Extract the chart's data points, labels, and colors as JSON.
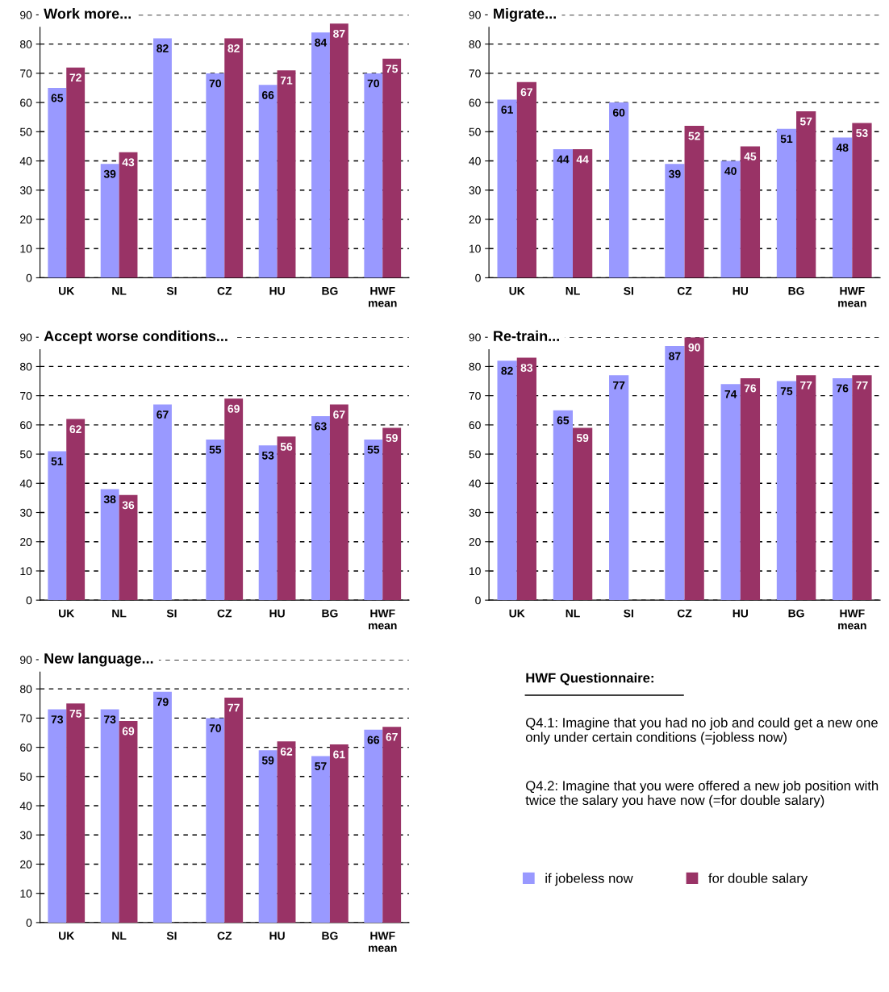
{
  "chart_data": [
    {
      "type": "bar",
      "title": "Work more...",
      "categories": [
        "UK",
        "NL",
        "SI",
        "CZ",
        "HU",
        "BG",
        "HWF\nmean"
      ],
      "ylim": [
        0,
        90
      ],
      "yticks": [
        0,
        10,
        20,
        30,
        40,
        50,
        60,
        70,
        80,
        90
      ],
      "grid": "y",
      "data_labels": true,
      "series": [
        {
          "color": "#9999ff",
          "values": [
            65,
            39,
            82,
            70,
            66,
            84,
            70
          ]
        },
        {
          "color": "#993366",
          "values": [
            72,
            43,
            null,
            82,
            71,
            87,
            75
          ]
        }
      ]
    },
    {
      "type": "bar",
      "title": "Migrate...",
      "categories": [
        "UK",
        "NL",
        "SI",
        "CZ",
        "HU",
        "BG",
        "HWF\nmean"
      ],
      "ylim": [
        0,
        90
      ],
      "yticks": [
        0,
        10,
        20,
        30,
        40,
        50,
        60,
        70,
        80,
        90
      ],
      "grid": "y",
      "data_labels": true,
      "series": [
        {
          "color": "#9999ff",
          "values": [
            61,
            44,
            60,
            39,
            40,
            51,
            48
          ]
        },
        {
          "color": "#993366",
          "values": [
            67,
            44,
            null,
            52,
            45,
            57,
            53
          ]
        }
      ]
    },
    {
      "type": "bar",
      "title": "Accept worse conditions...",
      "categories": [
        "UK",
        "NL",
        "SI",
        "CZ",
        "HU",
        "BG",
        "HWF\nmean"
      ],
      "ylim": [
        0,
        90
      ],
      "yticks": [
        0,
        10,
        20,
        30,
        40,
        50,
        60,
        70,
        80,
        90
      ],
      "grid": "y",
      "data_labels": true,
      "series": [
        {
          "color": "#9999ff",
          "values": [
            51,
            38,
            67,
            55,
            53,
            63,
            55
          ]
        },
        {
          "color": "#993366",
          "values": [
            62,
            36,
            null,
            69,
            56,
            67,
            59
          ]
        }
      ]
    },
    {
      "type": "bar",
      "title": "Re-train...",
      "categories": [
        "UK",
        "NL",
        "SI",
        "CZ",
        "HU",
        "BG",
        "HWF\nmean"
      ],
      "ylim": [
        0,
        90
      ],
      "yticks": [
        0,
        10,
        20,
        30,
        40,
        50,
        60,
        70,
        80,
        90
      ],
      "grid": "y",
      "data_labels": true,
      "series": [
        {
          "color": "#9999ff",
          "values": [
            82,
            65,
            77,
            87,
            74,
            75,
            76
          ]
        },
        {
          "color": "#993366",
          "values": [
            83,
            59,
            null,
            90,
            76,
            77,
            77
          ]
        }
      ]
    },
    {
      "type": "bar",
      "title": "New language...",
      "categories": [
        "UK",
        "NL",
        "SI",
        "CZ",
        "HU",
        "BG",
        "HWF\nmean"
      ],
      "ylim": [
        0,
        90
      ],
      "yticks": [
        0,
        10,
        20,
        30,
        40,
        50,
        60,
        70,
        80,
        90
      ],
      "grid": "y",
      "data_labels": true,
      "legend": "right",
      "series": [
        {
          "name": "if jobeless now",
          "color": "#9999ff",
          "values": [
            73,
            73,
            79,
            70,
            59,
            57,
            66
          ]
        },
        {
          "name": "for double salary",
          "color": "#993366",
          "values": [
            75,
            69,
            null,
            77,
            62,
            61,
            67
          ]
        }
      ]
    },
    {
      "type": "other",
      "title": "HWF Questionnaire:",
      "annotations": [
        "Q4.1: Imagine that you had no job and could get a new one only under certain conditions (=jobless now)",
        "Q4.2: Imagine that you were offered a new job position with twice the salary you have now (=for double salary)"
      ]
    }
  ]
}
